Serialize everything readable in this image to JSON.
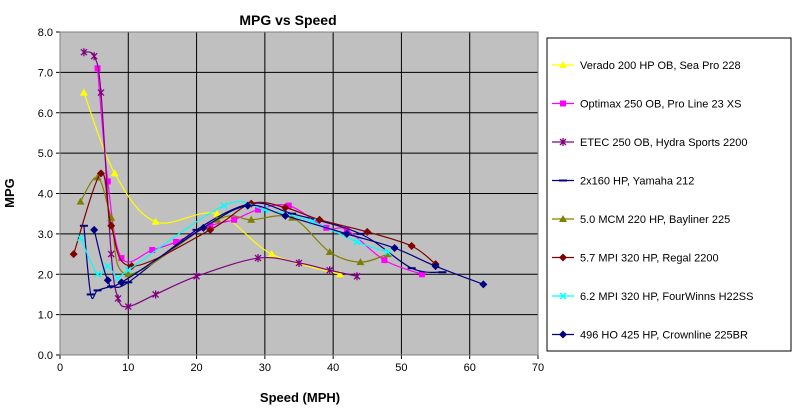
{
  "chart_data": {
    "type": "scatter",
    "title": "MPG vs Speed",
    "xlabel": "Speed (MPH)",
    "ylabel": "MPG",
    "xlim": [
      0,
      70
    ],
    "ylim": [
      0,
      8
    ],
    "xticks": [
      "0",
      "10",
      "20",
      "30",
      "40",
      "50",
      "60",
      "70"
    ],
    "yticks": [
      "0.0",
      "1.0",
      "2.0",
      "3.0",
      "4.0",
      "5.0",
      "6.0",
      "7.0",
      "8.0"
    ],
    "grid": true,
    "plot_background": "#c0c0c0",
    "legend_position": "right",
    "series": [
      {
        "name": "Verado 200 HP OB, Sea Pro 228",
        "color": "#ffff00",
        "marker": "triangle",
        "points": [
          [
            3.5,
            6.5
          ],
          [
            8,
            4.5
          ],
          [
            14,
            3.3
          ],
          [
            23,
            3.5
          ],
          [
            31,
            2.5
          ],
          [
            41,
            2.0
          ]
        ]
      },
      {
        "name": "Optimax 250 OB, Pro Line 23 XS",
        "color": "#ff00ff",
        "marker": "square",
        "points": [
          [
            5.5,
            7.1
          ],
          [
            7,
            4.3
          ],
          [
            9,
            2.4
          ],
          [
            13.5,
            2.6
          ],
          [
            17,
            2.8
          ],
          [
            22,
            3.2
          ],
          [
            25.5,
            3.35
          ],
          [
            29,
            3.6
          ],
          [
            33.5,
            3.7
          ],
          [
            39,
            3.15
          ],
          [
            42,
            3.1
          ],
          [
            47.5,
            2.35
          ],
          [
            53,
            2.0
          ]
        ]
      },
      {
        "name": "ETEC 250 OB, Hydra Sports 2200",
        "color": "#800080",
        "marker": "star",
        "points": [
          [
            3.5,
            7.5
          ],
          [
            5,
            7.4
          ],
          [
            6,
            6.5
          ],
          [
            7.5,
            2.5
          ],
          [
            8.5,
            1.4
          ],
          [
            10,
            1.2
          ],
          [
            14,
            1.5
          ],
          [
            20,
            1.95
          ],
          [
            29,
            2.4
          ],
          [
            35,
            2.28
          ],
          [
            39.5,
            2.1
          ],
          [
            43.5,
            1.95
          ]
        ]
      },
      {
        "name": "2x160 HP, Yamaha 212",
        "color": "#000080",
        "marker": "dash",
        "points": [
          [
            3.5,
            3.2
          ],
          [
            4.5,
            1.5
          ],
          [
            5.5,
            1.6
          ],
          [
            7.5,
            1.7
          ],
          [
            10,
            1.8
          ],
          [
            20,
            3.1
          ],
          [
            28,
            3.75
          ],
          [
            34,
            3.5
          ],
          [
            44,
            3.0
          ],
          [
            51.5,
            2.15
          ],
          [
            56,
            2.05
          ]
        ]
      },
      {
        "name": "5.0 MCM 220 HP, Bayliner 225",
        "color": "#808000",
        "marker": "triangle",
        "points": [
          [
            3,
            3.8
          ],
          [
            5.5,
            4.4
          ],
          [
            7.5,
            3.4
          ],
          [
            10,
            2.0
          ],
          [
            23,
            3.35
          ],
          [
            28,
            3.35
          ],
          [
            34,
            3.4
          ],
          [
            39.5,
            2.55
          ],
          [
            44,
            2.3
          ],
          [
            48,
            2.5
          ]
        ]
      },
      {
        "name": "5.7 MPI 320 HP, Regal 2200",
        "color": "#800000",
        "marker": "diamond",
        "points": [
          [
            2,
            2.5
          ],
          [
            6,
            4.5
          ],
          [
            7.5,
            3.2
          ],
          [
            10.5,
            2.2
          ],
          [
            22,
            3.1
          ],
          [
            28,
            3.75
          ],
          [
            33,
            3.65
          ],
          [
            38,
            3.35
          ],
          [
            45,
            3.05
          ],
          [
            51.5,
            2.7
          ],
          [
            55,
            2.25
          ]
        ]
      },
      {
        "name": "6.2 MPI 320 HP, FourWinns H22SS",
        "color": "#00ffff",
        "marker": "x",
        "points": [
          [
            3,
            2.9
          ],
          [
            5.5,
            2.0
          ],
          [
            7,
            2.2
          ],
          [
            8.5,
            1.9
          ],
          [
            10,
            2.1
          ],
          [
            24,
            3.7
          ],
          [
            30,
            3.6
          ],
          [
            37,
            3.3
          ],
          [
            43.5,
            2.8
          ],
          [
            48,
            2.55
          ]
        ]
      },
      {
        "name": "496 HO 425 HP, Crownline 225BR",
        "color": "#000080",
        "marker": "diamond",
        "points": [
          [
            5,
            3.1
          ],
          [
            7,
            1.85
          ],
          [
            9,
            1.8
          ],
          [
            21,
            3.15
          ],
          [
            27.5,
            3.7
          ],
          [
            33,
            3.45
          ],
          [
            42,
            3.0
          ],
          [
            49,
            2.65
          ],
          [
            55,
            2.2
          ],
          [
            62,
            1.75
          ]
        ]
      }
    ]
  }
}
